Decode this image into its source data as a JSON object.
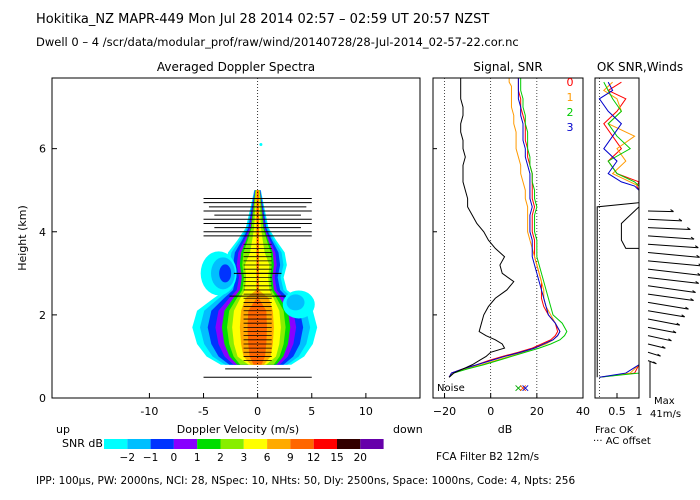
{
  "header": {
    "line1": "Hokitika_NZ   MAPR-449   Mon Jul 28 2014 02:57 – 02:59 UT 20:57 NZST",
    "line2": "Dwell  0 –  4   /scr/data/modular_prof/raw/wind/20140728/28-Jul-2014_02-57-22.cor.nc"
  },
  "footer": {
    "params": "IPP: 100µs,  PW: 2000ns,  NCI:  28,  NSpec: 10,  NHts: 50,  Dly: 2500ns,  Space: 1000ns,  Code: 4,  Npts: 256",
    "filter": "FCA Filter B2 12m/s"
  },
  "colorbar": {
    "label": "SNR dB",
    "ticks": [
      "-2",
      "-1",
      "0",
      "1",
      "2",
      "3",
      "6",
      "9",
      "12",
      "15",
      "20"
    ],
    "colors": [
      "#00ffff",
      "#00bfff",
      "#0033ff",
      "#8800ff",
      "#00dd00",
      "#88ee00",
      "#ffff00",
      "#ffaa00",
      "#ff6600",
      "#ff0000",
      "#330000",
      "#6600aa"
    ]
  },
  "chart_data": [
    {
      "type": "heatmap",
      "title": "Averaged Doppler Spectra",
      "xlabel": "Doppler Velocity (m/s)",
      "ylabel": "Height (km)",
      "xlim": [
        -19,
        15
      ],
      "ylim": [
        0,
        7.7
      ],
      "xticks": [
        -10,
        -5,
        0,
        5,
        10
      ],
      "yticks": [
        0,
        2,
        4,
        6
      ],
      "side_labels": {
        "left": "up",
        "right": "down"
      },
      "spectral_width_bars": [
        {
          "h": 0.5,
          "half_width": 5
        },
        {
          "h": 0.7,
          "half_width": 3
        },
        {
          "h": 3.9,
          "half_width": 5
        },
        {
          "h": 4.0,
          "half_width": 5
        },
        {
          "h": 4.1,
          "half_width": 4
        },
        {
          "h": 4.2,
          "half_width": 5
        },
        {
          "h": 4.3,
          "half_width": 5
        },
        {
          "h": 4.4,
          "half_width": 4
        },
        {
          "h": 4.5,
          "half_width": 5
        },
        {
          "h": 4.6,
          "half_width": 4.5
        },
        {
          "h": 4.7,
          "half_width": 5
        },
        {
          "h": 4.8,
          "half_width": 5
        },
        {
          "h": 2.45,
          "half_width": 2.6
        },
        {
          "h": 3.0,
          "half_width": 2.2
        }
      ]
    },
    {
      "type": "line",
      "title": "Signal, SNR",
      "xlabel": "dB",
      "xlim": [
        -25,
        40
      ],
      "ylim": [
        0,
        7.7
      ],
      "xticks": [
        -20,
        0,
        20,
        40
      ],
      "annotation": "Noise",
      "series": [
        {
          "name": "0",
          "color": "#ff0000",
          "x": [
            -18,
            -17,
            -12,
            -6,
            -1,
            5,
            12,
            18,
            22,
            26,
            28,
            29,
            28,
            25,
            23,
            22,
            22,
            22,
            21,
            20,
            19,
            19,
            19,
            18,
            18,
            18,
            19,
            18,
            18,
            18,
            18,
            17,
            16,
            16,
            15,
            15,
            15,
            14,
            13,
            13,
            12,
            12,
            12,
            12
          ],
          "y": [
            0.5,
            0.6,
            0.7,
            0.8,
            0.9,
            1.0,
            1.1,
            1.2,
            1.3,
            1.4,
            1.5,
            1.6,
            1.8,
            2.0,
            2.2,
            2.4,
            2.6,
            2.8,
            3.0,
            3.2,
            3.4,
            3.6,
            3.8,
            4.0,
            4.2,
            4.4,
            4.6,
            4.8,
            5.0,
            5.2,
            5.4,
            5.6,
            5.8,
            6.0,
            6.2,
            6.4,
            6.6,
            6.8,
            7.0,
            7.2,
            7.4,
            7.5,
            7.6,
            7.7
          ]
        },
        {
          "name": "1",
          "color": "#ff9900",
          "x": [
            -18,
            -16,
            -11,
            -4,
            2,
            8,
            14,
            19,
            24,
            27,
            29,
            30,
            28,
            26,
            24,
            23,
            23,
            22,
            21,
            20,
            19,
            18,
            17,
            16,
            16,
            16,
            16,
            15,
            15,
            14,
            13,
            13,
            12,
            11,
            11,
            11,
            10,
            10,
            9,
            9,
            9,
            9,
            8,
            8
          ],
          "y": [
            0.5,
            0.6,
            0.7,
            0.8,
            0.9,
            1.0,
            1.1,
            1.2,
            1.3,
            1.4,
            1.5,
            1.6,
            1.8,
            2.0,
            2.2,
            2.4,
            2.6,
            2.8,
            3.0,
            3.2,
            3.4,
            3.6,
            3.8,
            4.0,
            4.2,
            4.4,
            4.6,
            4.8,
            5.0,
            5.2,
            5.4,
            5.6,
            5.8,
            6.0,
            6.2,
            6.4,
            6.6,
            6.8,
            7.0,
            7.2,
            7.4,
            7.5,
            7.6,
            7.7
          ]
        },
        {
          "name": "2",
          "color": "#00cc00",
          "x": [
            -18,
            -16,
            -10,
            -3,
            3,
            9,
            15,
            21,
            26,
            30,
            32,
            33,
            31,
            27,
            26,
            25,
            24,
            23,
            22,
            21,
            20,
            20,
            20,
            19,
            19,
            19,
            20,
            19,
            19,
            18,
            18,
            17,
            17,
            16,
            16,
            16,
            15,
            15,
            14,
            14,
            13,
            13,
            13,
            13
          ],
          "y": [
            0.5,
            0.6,
            0.7,
            0.8,
            0.9,
            1.0,
            1.1,
            1.2,
            1.3,
            1.4,
            1.5,
            1.6,
            1.8,
            2.0,
            2.2,
            2.4,
            2.6,
            2.8,
            3.0,
            3.2,
            3.4,
            3.6,
            3.8,
            4.0,
            4.2,
            4.4,
            4.6,
            4.8,
            5.0,
            5.2,
            5.4,
            5.6,
            5.8,
            6.0,
            6.2,
            6.4,
            6.6,
            6.8,
            7.0,
            7.2,
            7.4,
            7.5,
            7.6,
            7.7
          ]
        },
        {
          "name": "3",
          "color": "#0000cc",
          "x": [
            -18,
            -17,
            -12,
            -6,
            0,
            6,
            13,
            19,
            23,
            27,
            29,
            30,
            28,
            25,
            24,
            23,
            22,
            21,
            20,
            19,
            18,
            18,
            18,
            17,
            17,
            17,
            18,
            17,
            17,
            17,
            17,
            16,
            15,
            15,
            14,
            14,
            14,
            13,
            13,
            12,
            12,
            12,
            12,
            12
          ],
          "y": [
            0.5,
            0.6,
            0.7,
            0.8,
            0.9,
            1.0,
            1.1,
            1.2,
            1.3,
            1.4,
            1.5,
            1.6,
            1.8,
            2.0,
            2.2,
            2.4,
            2.6,
            2.8,
            3.0,
            3.2,
            3.4,
            3.6,
            3.8,
            4.0,
            4.2,
            4.4,
            4.6,
            4.8,
            5.0,
            5.2,
            5.4,
            5.6,
            5.8,
            6.0,
            6.2,
            6.4,
            6.6,
            6.8,
            7.0,
            7.2,
            7.4,
            7.5,
            7.6,
            7.7
          ]
        },
        {
          "name": "signal",
          "color": "#000000",
          "x": [
            -18,
            -16,
            -12,
            -8,
            -5,
            -2,
            0,
            6,
            5,
            2,
            -2,
            -5,
            -4,
            -3,
            -1,
            2,
            7,
            10,
            5,
            4,
            6,
            2,
            -1,
            -3,
            -6,
            -8,
            -10,
            -10,
            -11,
            -12,
            -12,
            -12,
            -11,
            -12,
            -12,
            -13,
            -13,
            -12,
            -12,
            -13,
            -13,
            -13,
            -13,
            -13
          ],
          "y": [
            0.5,
            0.6,
            0.7,
            0.8,
            0.9,
            1.0,
            1.1,
            1.2,
            1.3,
            1.4,
            1.5,
            1.6,
            1.8,
            2.0,
            2.2,
            2.4,
            2.6,
            2.8,
            3.0,
            3.2,
            3.4,
            3.6,
            3.8,
            4.0,
            4.2,
            4.4,
            4.6,
            4.8,
            5.0,
            5.2,
            5.4,
            5.6,
            5.8,
            6.0,
            6.2,
            6.4,
            6.6,
            6.8,
            7.0,
            7.2,
            7.4,
            7.5,
            7.6,
            7.7
          ]
        }
      ]
    },
    {
      "type": "line",
      "title": "OK SNR,Winds",
      "xlabel": "Frac OK",
      "xlim": [
        0,
        1
      ],
      "ylim": [
        0,
        7.7
      ],
      "xticks": [
        0.5,
        1
      ],
      "legend_note": "··· AC offset",
      "max_label": "Max\n41m/s",
      "series": [
        {
          "name": "0",
          "color": "#ff0000",
          "x": [
            0.1,
            0.9,
            1,
            1,
            1,
            1,
            1,
            1,
            0.95,
            1,
            0.5,
            0.3,
            0.6,
            0.4,
            0.2,
            0.5,
            0.7,
            0.3,
            0.6
          ],
          "y": [
            0.5,
            0.6,
            0.8,
            1.5,
            2.5,
            3.5,
            4.5,
            5.0,
            5.1,
            5.2,
            5.4,
            5.7,
            6.0,
            6.3,
            6.6,
            6.9,
            7.2,
            7.4,
            7.6
          ]
        },
        {
          "name": "1",
          "color": "#ff9900",
          "x": [
            0.1,
            0.8,
            1,
            1,
            1,
            1,
            1,
            1,
            1,
            0.8,
            0.4,
            0.7,
            0.5,
            0.9,
            0.3,
            0.6,
            0.5,
            0.2,
            0.4
          ],
          "y": [
            0.5,
            0.6,
            0.8,
            1.5,
            2.5,
            3.5,
            4.5,
            5.0,
            5.1,
            5.2,
            5.4,
            5.7,
            6.0,
            6.3,
            6.6,
            6.9,
            7.2,
            7.4,
            7.6
          ]
        },
        {
          "name": "2",
          "color": "#00cc00",
          "x": [
            0.1,
            1,
            1,
            1,
            1,
            1,
            1,
            1,
            1,
            0.9,
            0.5,
            0.3,
            0.8,
            0.5,
            0.3,
            0.6,
            0.4,
            0.3,
            0.2
          ],
          "y": [
            0.5,
            0.6,
            0.8,
            1.5,
            2.5,
            3.5,
            4.5,
            5.0,
            5.1,
            5.2,
            5.4,
            5.7,
            6.0,
            6.3,
            6.6,
            6.9,
            7.2,
            7.4,
            7.6
          ]
        },
        {
          "name": "3",
          "color": "#0000cc",
          "x": [
            0.1,
            0.7,
            1,
            1,
            1,
            1,
            1,
            1,
            0.9,
            0.6,
            0.3,
            0.5,
            0.2,
            0.4,
            0.6,
            0.3,
            0.1,
            0.4,
            0.3
          ],
          "y": [
            0.5,
            0.6,
            0.8,
            1.5,
            2.5,
            3.5,
            4.5,
            5.0,
            5.1,
            5.2,
            5.4,
            5.7,
            6.0,
            6.3,
            6.6,
            6.9,
            7.2,
            7.4,
            7.6
          ]
        },
        {
          "name": "winds-ok",
          "color": "#000000",
          "x": [
            0.05,
            0.05,
            0.05,
            0.05,
            0.05,
            0.05,
            0.05,
            0.05,
            0.05,
            0.05,
            1,
            1,
            0.7,
            0.6,
            0.6,
            0.6,
            0.7,
            1,
            1,
            1
          ],
          "y": [
            0.5,
            1.0,
            1.5,
            2.0,
            2.5,
            3.0,
            3.5,
            4.0,
            4.3,
            4.6,
            4.7,
            4.6,
            4.3,
            4.2,
            4.0,
            3.8,
            3.6,
            3.6,
            2.5,
            0.5
          ]
        }
      ],
      "wind_barbs_ms": [
        {
          "h": 0.9,
          "speed": 6,
          "dir": 340
        },
        {
          "h": 1.1,
          "speed": 8,
          "dir": 330
        },
        {
          "h": 1.3,
          "speed": 10,
          "dir": 320
        },
        {
          "h": 1.5,
          "speed": 13,
          "dir": 315
        },
        {
          "h": 1.7,
          "speed": 15,
          "dir": 310
        },
        {
          "h": 1.9,
          "speed": 17,
          "dir": 310
        },
        {
          "h": 2.1,
          "speed": 19,
          "dir": 305
        },
        {
          "h": 2.3,
          "speed": 21,
          "dir": 305
        },
        {
          "h": 2.5,
          "speed": 23,
          "dir": 300
        },
        {
          "h": 2.7,
          "speed": 24,
          "dir": 300
        },
        {
          "h": 2.9,
          "speed": 25,
          "dir": 295
        },
        {
          "h": 3.1,
          "speed": 26,
          "dir": 295
        },
        {
          "h": 3.3,
          "speed": 26,
          "dir": 290
        },
        {
          "h": 3.5,
          "speed": 25,
          "dir": 290
        },
        {
          "h": 3.7,
          "speed": 24,
          "dir": 285
        },
        {
          "h": 3.9,
          "speed": 22,
          "dir": 285
        },
        {
          "h": 4.1,
          "speed": 20,
          "dir": 280
        },
        {
          "h": 4.3,
          "speed": 16,
          "dir": 280
        },
        {
          "h": 4.5,
          "speed": 12,
          "dir": 275
        }
      ]
    }
  ]
}
